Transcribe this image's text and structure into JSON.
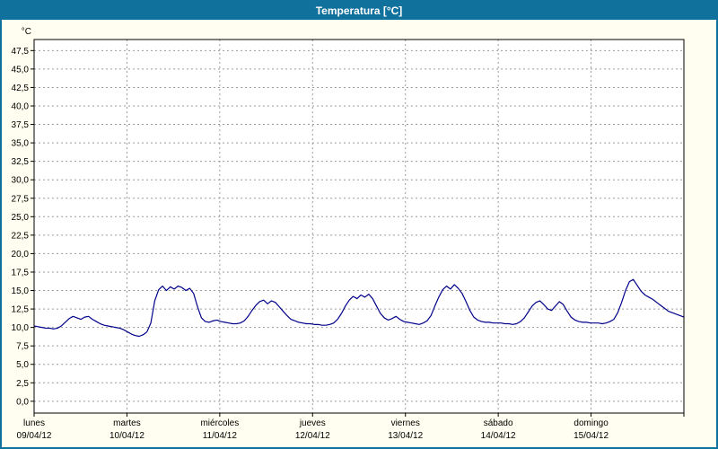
{
  "window": {
    "title": "Temperatura [°C]"
  },
  "colors": {
    "header_bg": "#10719c",
    "header_text": "#ffffff",
    "panel_bg": "#fffef0",
    "plot_bg": "#ffffff",
    "grid": "#9a9a9a",
    "frame": "#000000",
    "series": "#00008b",
    "text": "#000000"
  },
  "y_axis": {
    "unit": "°C",
    "tick_labels": [
      "47,5",
      "45,0",
      "42,5",
      "40,0",
      "37,5",
      "35,0",
      "32,5",
      "30,0",
      "27,5",
      "25,0",
      "22,5",
      "20,0",
      "17,5",
      "15,0",
      "12,5",
      "10,0",
      "7,5",
      "5,0",
      "2,5",
      "0,0"
    ],
    "min": -1.6,
    "max": 49.0
  },
  "x_axis": {
    "days": [
      {
        "name": "lunes",
        "date": "09/04/12"
      },
      {
        "name": "martes",
        "date": "10/04/12"
      },
      {
        "name": "miércoles",
        "date": "11/04/12"
      },
      {
        "name": "jueves",
        "date": "12/04/12"
      },
      {
        "name": "viernes",
        "date": "13/04/12"
      },
      {
        "name": "sábado",
        "date": "14/04/12"
      },
      {
        "name": "domingo",
        "date": "15/04/12"
      }
    ]
  },
  "chart_data": {
    "type": "line",
    "title": "Temperatura [°C]",
    "ylabel": "°C",
    "ylim": [
      0,
      47.5
    ],
    "grid": true,
    "x_unit": "hours (hourly samples, 7 days)",
    "series": [
      {
        "name": "Temperatura",
        "values": [
          10.2,
          10.1,
          10.0,
          9.9,
          9.9,
          9.8,
          9.9,
          10.2,
          10.7,
          11.2,
          11.5,
          11.3,
          11.1,
          11.4,
          11.5,
          11.1,
          10.8,
          10.5,
          10.3,
          10.2,
          10.1,
          10.0,
          9.9,
          9.7,
          9.4,
          9.1,
          8.9,
          8.8,
          9.0,
          9.4,
          10.6,
          13.6,
          15.1,
          15.6,
          15.0,
          15.5,
          15.2,
          15.6,
          15.4,
          15.0,
          15.3,
          14.6,
          12.8,
          11.3,
          10.8,
          10.7,
          10.9,
          11.0,
          10.8,
          10.7,
          10.6,
          10.5,
          10.5,
          10.6,
          10.9,
          11.5,
          12.3,
          13.0,
          13.5,
          13.7,
          13.2,
          13.6,
          13.4,
          12.8,
          12.2,
          11.6,
          11.1,
          10.9,
          10.7,
          10.6,
          10.5,
          10.5,
          10.4,
          10.4,
          10.3,
          10.3,
          10.4,
          10.6,
          11.1,
          11.9,
          12.9,
          13.7,
          14.2,
          13.9,
          14.4,
          14.1,
          14.5,
          13.9,
          12.9,
          11.9,
          11.3,
          11.0,
          11.2,
          11.5,
          11.1,
          10.8,
          10.7,
          10.6,
          10.5,
          10.4,
          10.6,
          10.9,
          11.6,
          12.9,
          14.1,
          15.1,
          15.6,
          15.2,
          15.8,
          15.3,
          14.6,
          13.5,
          12.3,
          11.4,
          11.0,
          10.8,
          10.7,
          10.7,
          10.6,
          10.6,
          10.6,
          10.5,
          10.5,
          10.4,
          10.5,
          10.8,
          11.3,
          12.1,
          12.9,
          13.4,
          13.6,
          13.1,
          12.5,
          12.3,
          12.9,
          13.5,
          13.1,
          12.2,
          11.4,
          11.0,
          10.8,
          10.7,
          10.7,
          10.6,
          10.6,
          10.6,
          10.5,
          10.6,
          10.8,
          11.1,
          12.0,
          13.4,
          15.0,
          16.2,
          16.5,
          15.7,
          14.9,
          14.4,
          14.1,
          13.8,
          13.4,
          13.0,
          12.6,
          12.2,
          12.0,
          11.8,
          11.6,
          11.4
        ]
      }
    ]
  }
}
